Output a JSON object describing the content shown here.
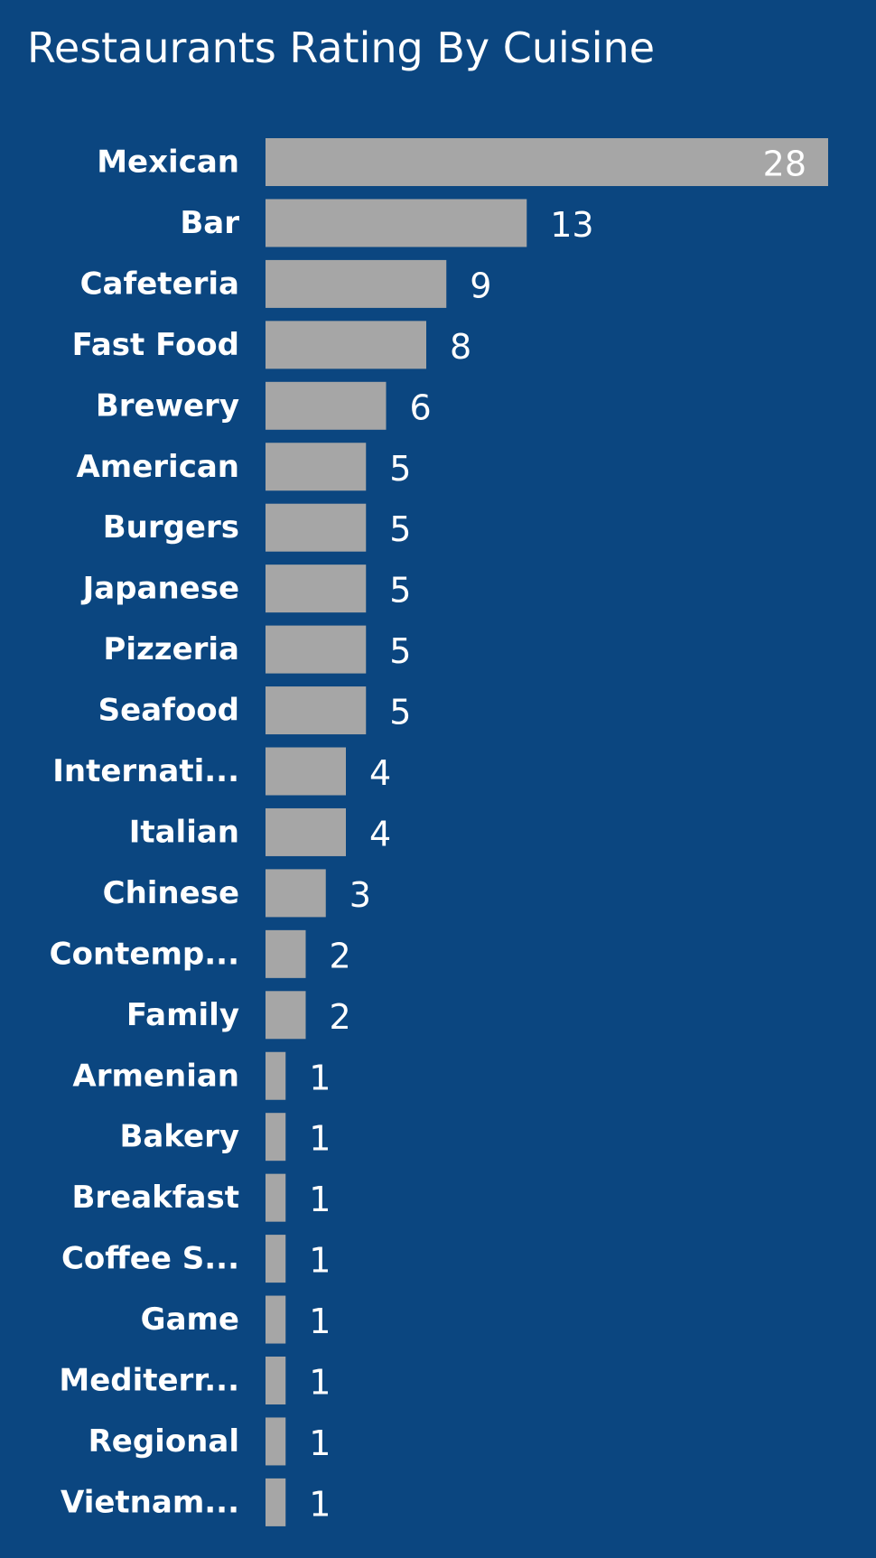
{
  "chart_data": {
    "type": "bar",
    "orientation": "horizontal",
    "title": "Restaurants Rating By Cuisine",
    "categories": [
      "Mexican",
      "Bar",
      "Cafeteria",
      "Fast Food",
      "Brewery",
      "American",
      "Burgers",
      "Japanese",
      "Pizzeria",
      "Seafood",
      "Internati...",
      "Italian",
      "Chinese",
      "Contemp...",
      "Family",
      "Armenian",
      "Bakery",
      "Breakfast",
      "Coffee S...",
      "Game",
      "Mediterr...",
      "Regional",
      "Vietnam..."
    ],
    "values": [
      28,
      13,
      9,
      8,
      6,
      5,
      5,
      5,
      5,
      5,
      4,
      4,
      3,
      2,
      2,
      1,
      1,
      1,
      1,
      1,
      1,
      1,
      1
    ],
    "xlim": [
      0,
      28
    ],
    "grid": false,
    "data_labels": true,
    "colors": {
      "background": "#0b4680",
      "bar": "#a6a6a6",
      "text": "#ffffff"
    }
  }
}
